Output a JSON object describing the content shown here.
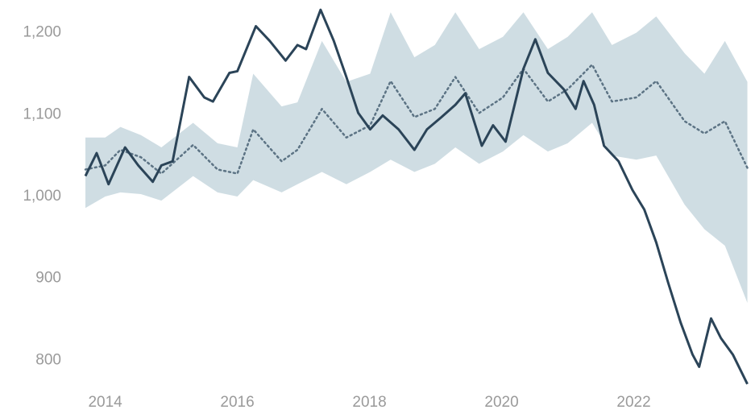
{
  "chart_data": {
    "type": "line",
    "xlim": [
      2013.7,
      2023.75
    ],
    "ylim": [
      760,
      1240
    ],
    "xticks": [
      2014,
      2016,
      2018,
      2020,
      2022
    ],
    "yticks": [
      {
        "value": 800,
        "label": "800"
      },
      {
        "value": 900,
        "label": "900"
      },
      {
        "value": 1000,
        "label": "1,000"
      },
      {
        "value": 1100,
        "label": "1,100"
      },
      {
        "value": 1200,
        "label": "1,200"
      }
    ],
    "series": [
      {
        "color": "#cfdde3",
        "x": [
          2013.7,
          2014.0,
          2014.23,
          2014.54,
          2014.85,
          2015.33,
          2015.7,
          2016.0,
          2016.24,
          2016.67,
          2016.91,
          2017.28,
          2017.65,
          2018.01,
          2018.32,
          2018.68,
          2018.99,
          2019.3,
          2019.66,
          2020.02,
          2020.33,
          2020.7,
          2021.0,
          2021.37,
          2021.67,
          2022.04,
          2022.34,
          2022.77,
          2023.07,
          2023.38,
          2023.72
        ],
        "upper": [
          1072,
          1072,
          1085,
          1075,
          1060,
          1090,
          1065,
          1060,
          1150,
          1110,
          1115,
          1190,
          1140,
          1150,
          1225,
          1170,
          1185,
          1225,
          1180,
          1195,
          1225,
          1180,
          1195,
          1225,
          1185,
          1200,
          1220,
          1175,
          1150,
          1190,
          1140
        ],
        "lower": [
          986,
          1000,
          1005,
          1003,
          995,
          1025,
          1005,
          1000,
          1020,
          1005,
          1015,
          1030,
          1015,
          1030,
          1045,
          1030,
          1040,
          1060,
          1040,
          1055,
          1075,
          1055,
          1065,
          1090,
          1050,
          1045,
          1050,
          990,
          960,
          940,
          870
        ]
      },
      {
        "color": "#5c7384",
        "dash": true,
        "x": [
          2013.7,
          2014.0,
          2014.23,
          2014.54,
          2014.85,
          2015.33,
          2015.7,
          2016.0,
          2016.24,
          2016.67,
          2016.91,
          2017.28,
          2017.65,
          2018.01,
          2018.32,
          2018.68,
          2018.99,
          2019.3,
          2019.66,
          2020.02,
          2020.33,
          2020.7,
          2021.0,
          2021.37,
          2021.67,
          2022.04,
          2022.34,
          2022.77,
          2023.07,
          2023.38,
          2023.72
        ],
        "values": [
          1033,
          1038,
          1057,
          1048,
          1028,
          1063,
          1033,
          1028,
          1082,
          1043,
          1057,
          1107,
          1072,
          1087,
          1141,
          1097,
          1107,
          1146,
          1102,
          1121,
          1156,
          1116,
          1131,
          1161,
          1116,
          1121,
          1141,
          1092,
          1077,
          1092,
          1035
        ]
      },
      {
        "color": "#2b4458",
        "x": [
          2013.7,
          2013.87,
          2014.05,
          2014.3,
          2014.5,
          2014.72,
          2014.85,
          2015.02,
          2015.27,
          2015.5,
          2015.63,
          2015.88,
          2016.0,
          2016.28,
          2016.49,
          2016.73,
          2016.91,
          2017.04,
          2017.26,
          2017.46,
          2017.65,
          2017.83,
          2018.01,
          2018.2,
          2018.44,
          2018.68,
          2018.87,
          2019.09,
          2019.3,
          2019.45,
          2019.7,
          2019.87,
          2020.06,
          2020.33,
          2020.51,
          2020.7,
          2020.94,
          2021.12,
          2021.24,
          2021.4,
          2021.55,
          2021.77,
          2021.98,
          2022.16,
          2022.34,
          2022.52,
          2022.71,
          2022.89,
          2022.99,
          2023.17,
          2023.32,
          2023.5,
          2023.72
        ],
        "values": [
          1025,
          1053,
          1015,
          1060,
          1038,
          1018,
          1038,
          1043,
          1146,
          1121,
          1116,
          1151,
          1153,
          1208,
          1190,
          1166,
          1185,
          1180,
          1228,
          1190,
          1146,
          1102,
          1082,
          1099,
          1082,
          1057,
          1082,
          1097,
          1112,
          1126,
          1062,
          1087,
          1067,
          1156,
          1192,
          1151,
          1131,
          1107,
          1141,
          1112,
          1062,
          1043,
          1008,
          984,
          944,
          895,
          846,
          807,
          792,
          851,
          827,
          807,
          771
        ]
      }
    ]
  }
}
